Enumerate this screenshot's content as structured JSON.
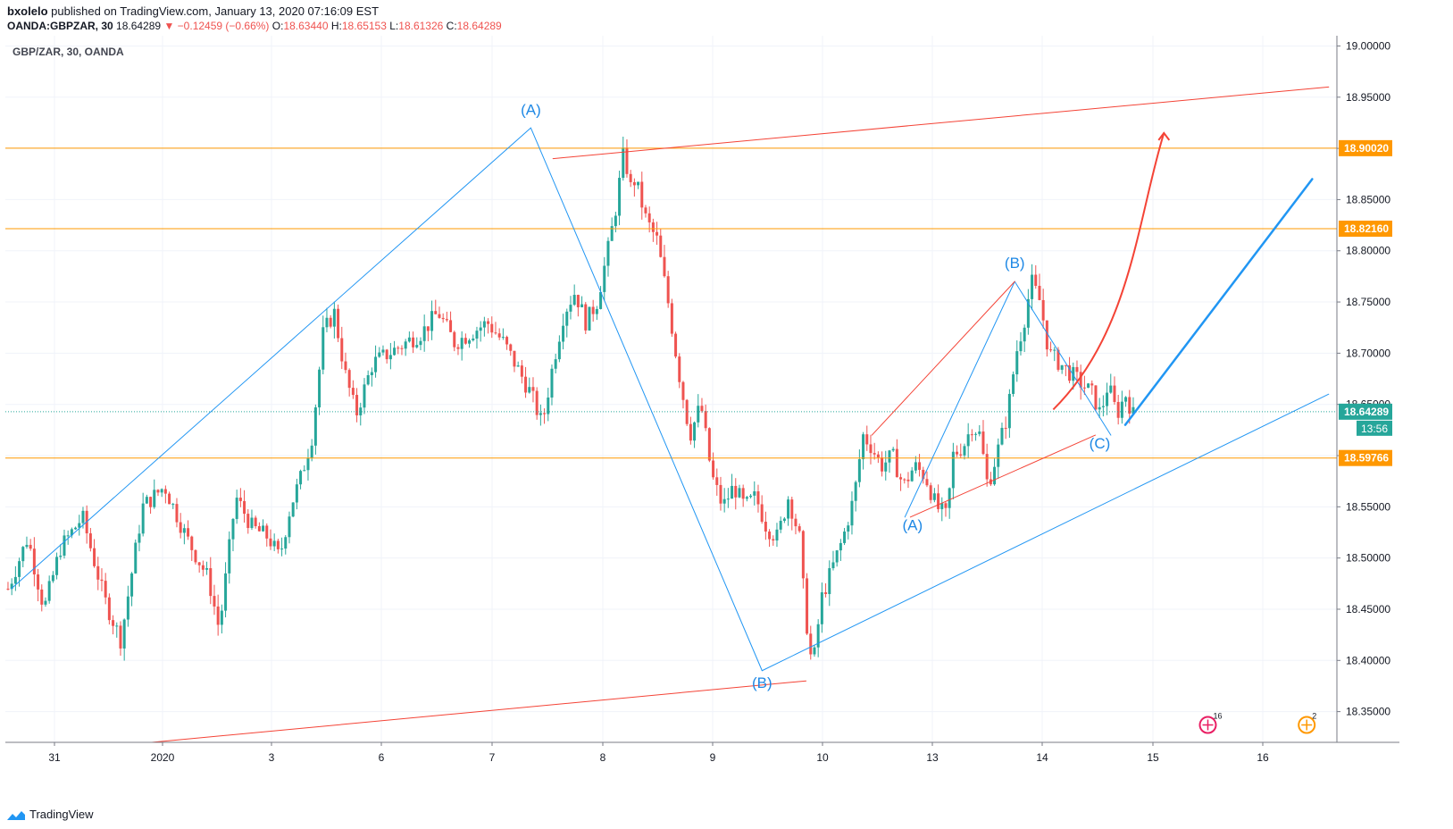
{
  "header": {
    "author": "bxolelo",
    "published_text": "published on TradingView.com, January 13, 2020 07:16:09 EST",
    "symbol": "OANDA:GBPZAR, 30",
    "last": "18.64289",
    "change_arrow": "▼",
    "change": "−0.12459 (−0.66%)",
    "o_label": "O:",
    "o_value": "18.63440",
    "h_label": "H:",
    "h_value": "18.65153",
    "l_label": "L:",
    "l_value": "18.61326",
    "c_label": "C:",
    "c_value": "18.64289"
  },
  "footer": {
    "brand": "TradingView"
  },
  "chart_data": {
    "type": "candlestick",
    "legend_title": "GBP/ZAR, 30, OANDA",
    "ylim": [
      18.32,
      19.01
    ],
    "y_ticks": [
      "18.35000",
      "18.40000",
      "18.45000",
      "18.50000",
      "18.55000",
      "18.60000",
      "18.65000",
      "18.70000",
      "18.75000",
      "18.80000",
      "18.85000",
      "18.90000",
      "18.95000",
      "19.00000"
    ],
    "x_ticks": [
      {
        "label": "31",
        "day": 31
      },
      {
        "label": "2020",
        "day": 32
      },
      {
        "label": "3",
        "day": 33
      },
      {
        "label": "6",
        "day": 34
      },
      {
        "label": "7",
        "day": 35
      },
      {
        "label": "8",
        "day": 36
      },
      {
        "label": "9",
        "day": 37
      },
      {
        "label": "10",
        "day": 38
      },
      {
        "label": "13",
        "day": 39
      },
      {
        "label": "14",
        "day": 40
      },
      {
        "label": "15",
        "day": 41
      },
      {
        "label": "16",
        "day": 42
      }
    ],
    "xlim": [
      30.55,
      42.7
    ],
    "price_path": [
      [
        30.57,
        18.47
      ],
      [
        30.75,
        18.52
      ],
      [
        30.9,
        18.45
      ],
      [
        31.05,
        18.51
      ],
      [
        31.25,
        18.54
      ],
      [
        31.45,
        18.46
      ],
      [
        31.6,
        18.42
      ],
      [
        31.8,
        18.55
      ],
      [
        32.0,
        18.57
      ],
      [
        32.2,
        18.52
      ],
      [
        32.4,
        18.48
      ],
      [
        32.5,
        18.43
      ],
      [
        32.65,
        18.56
      ],
      [
        32.8,
        18.53
      ],
      [
        32.95,
        18.52
      ],
      [
        33.05,
        18.5
      ],
      [
        33.15,
        18.55
      ],
      [
        33.25,
        18.58
      ],
      [
        33.35,
        18.62
      ],
      [
        33.45,
        18.72
      ],
      [
        33.55,
        18.74
      ],
      [
        33.65,
        18.68
      ],
      [
        33.75,
        18.64
      ],
      [
        33.9,
        18.69
      ],
      [
        34.05,
        18.7
      ],
      [
        34.2,
        18.71
      ],
      [
        34.35,
        18.72
      ],
      [
        34.5,
        18.74
      ],
      [
        34.65,
        18.71
      ],
      [
        34.8,
        18.72
      ],
      [
        34.95,
        18.73
      ],
      [
        35.1,
        18.71
      ],
      [
        35.2,
        18.69
      ],
      [
        35.35,
        18.66
      ],
      [
        35.45,
        18.63
      ],
      [
        35.55,
        18.69
      ],
      [
        35.65,
        18.74
      ],
      [
        35.75,
        18.76
      ],
      [
        35.85,
        18.73
      ],
      [
        35.95,
        18.75
      ],
      [
        36.05,
        18.8
      ],
      [
        36.12,
        18.84
      ],
      [
        36.2,
        18.9
      ],
      [
        36.25,
        18.86
      ],
      [
        36.3,
        18.87
      ],
      [
        36.4,
        18.83
      ],
      [
        36.5,
        18.81
      ],
      [
        36.6,
        18.75
      ],
      [
        36.7,
        18.68
      ],
      [
        36.8,
        18.62
      ],
      [
        36.9,
        18.65
      ],
      [
        37.0,
        18.58
      ],
      [
        37.1,
        18.55
      ],
      [
        37.2,
        18.57
      ],
      [
        37.3,
        18.55
      ],
      [
        37.4,
        18.56
      ],
      [
        37.5,
        18.53
      ],
      [
        37.6,
        18.52
      ],
      [
        37.7,
        18.56
      ],
      [
        37.8,
        18.52
      ],
      [
        37.85,
        18.45
      ],
      [
        37.92,
        18.39
      ],
      [
        38.0,
        18.46
      ],
      [
        38.1,
        18.49
      ],
      [
        38.2,
        18.52
      ],
      [
        38.3,
        18.56
      ],
      [
        38.38,
        18.62
      ],
      [
        38.45,
        18.61
      ],
      [
        38.55,
        18.59
      ],
      [
        38.65,
        18.6
      ],
      [
        38.75,
        18.57
      ],
      [
        38.85,
        18.59
      ],
      [
        38.95,
        18.58
      ],
      [
        39.05,
        18.55
      ],
      [
        39.15,
        18.54
      ],
      [
        39.2,
        18.6
      ],
      [
        39.3,
        18.61
      ],
      [
        39.38,
        18.63
      ],
      [
        39.45,
        18.62
      ],
      [
        39.52,
        18.57
      ],
      [
        39.6,
        18.6
      ],
      [
        39.7,
        18.64
      ],
      [
        39.78,
        18.7
      ],
      [
        39.85,
        18.73
      ],
      [
        39.92,
        18.77
      ],
      [
        40.0,
        18.75
      ],
      [
        40.08,
        18.7
      ],
      [
        40.18,
        18.69
      ],
      [
        40.28,
        18.68
      ],
      [
        40.38,
        18.67
      ],
      [
        40.48,
        18.66
      ],
      [
        40.55,
        18.64
      ],
      [
        40.62,
        18.67
      ],
      [
        40.7,
        18.64
      ],
      [
        40.78,
        18.66
      ],
      [
        40.85,
        18.64
      ]
    ],
    "horizontal_levels": [
      {
        "price": 18.9002,
        "label": "18.90020",
        "color": "#ff9800"
      },
      {
        "price": 18.8216,
        "label": "18.82160",
        "color": "#ff9800"
      },
      {
        "price": 18.59766,
        "label": "18.59766",
        "color": "#ff9800"
      }
    ],
    "last_price": {
      "price": 18.64289,
      "label": "18.64289",
      "countdown": "13:56",
      "color": "#26a69a"
    },
    "trend_lines": [
      {
        "from": [
          30.6,
          18.47
        ],
        "to": [
          35.35,
          18.92
        ],
        "color": "#2196f3",
        "width": 1
      },
      {
        "from": [
          35.35,
          18.92
        ],
        "to": [
          37.45,
          18.39
        ],
        "color": "#2196f3",
        "width": 1
      },
      {
        "from": [
          37.45,
          18.39
        ],
        "to": [
          42.6,
          18.66
        ],
        "color": "#2196f3",
        "width": 1
      },
      {
        "from": [
          38.75,
          18.54
        ],
        "to": [
          39.75,
          18.77
        ],
        "color": "#2196f3",
        "width": 1
      },
      {
        "from": [
          39.75,
          18.77
        ],
        "to": [
          40.62,
          18.62
        ],
        "color": "#2196f3",
        "width": 1
      },
      {
        "from": [
          40.75,
          18.63
        ],
        "to": [
          42.45,
          18.87
        ],
        "color": "#2196f3",
        "width": 2.5
      },
      {
        "from": [
          31.9,
          18.32
        ],
        "to": [
          37.85,
          18.38
        ],
        "color": "#f44336",
        "width": 1
      },
      {
        "from": [
          35.55,
          18.89
        ],
        "to": [
          42.6,
          18.96
        ],
        "color": "#f44336",
        "width": 1
      },
      {
        "from": [
          38.45,
          18.62
        ],
        "to": [
          39.75,
          18.77
        ],
        "color": "#f44336",
        "width": 1
      },
      {
        "from": [
          38.8,
          18.54
        ],
        "to": [
          40.48,
          18.62
        ],
        "color": "#f44336",
        "width": 1
      }
    ],
    "wave_labels": [
      {
        "text": "(A)",
        "x": 35.35,
        "y": 18.933
      },
      {
        "text": "(B)",
        "x": 37.45,
        "y": 18.373
      },
      {
        "text": "(A)",
        "x": 38.82,
        "y": 18.527
      },
      {
        "text": "(B)",
        "x": 39.75,
        "y": 18.783
      },
      {
        "text": "(C)",
        "x": 40.52,
        "y": 18.607
      }
    ],
    "counters": [
      {
        "text": "16",
        "x": 41.5,
        "y": 18.337,
        "color": "#e91e63"
      },
      {
        "text": "2",
        "x": 42.4,
        "y": 18.337,
        "color": "#ff9800"
      }
    ]
  }
}
